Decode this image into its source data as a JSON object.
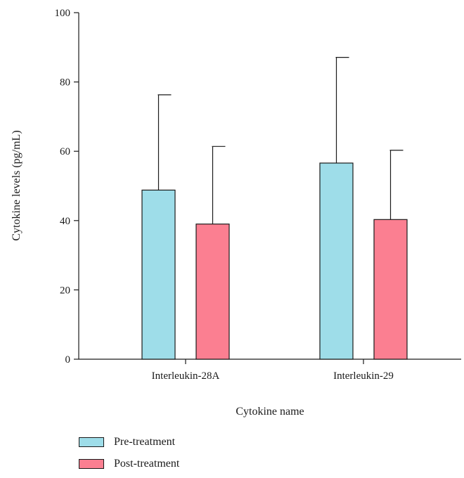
{
  "chart_data": {
    "type": "bar",
    "categories": [
      "Interleukin-28A",
      "Interleukin-29"
    ],
    "series": [
      {
        "name": "Pre-treatment",
        "values": [
          48.8,
          56.6
        ],
        "errors": [
          27.5,
          30.5
        ],
        "color": "#9edde9"
      },
      {
        "name": "Post-treatment",
        "values": [
          39.0,
          40.3
        ],
        "errors": [
          22.4,
          20.0
        ],
        "color": "#fb7f91"
      }
    ],
    "title": "",
    "xlabel": "Cytokine name",
    "ylabel": "Cytokine levels (pg/mL)",
    "ylim": [
      0,
      100
    ],
    "yticks": [
      "0",
      "20",
      "40",
      "60",
      "80",
      "100"
    ],
    "grid": false,
    "legend_position": "bottom-left"
  }
}
